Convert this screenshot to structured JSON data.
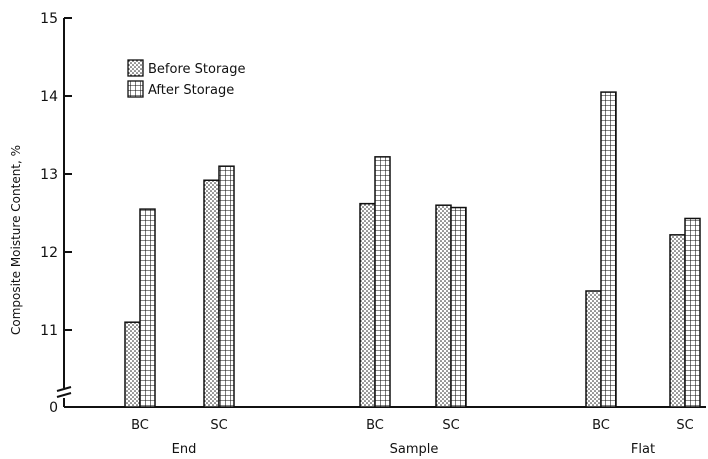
{
  "chart_data": {
    "type": "bar",
    "ylabel": "Composite Moisture Content, %",
    "yticks": [
      0,
      11,
      12,
      13,
      14,
      15
    ],
    "axis_break": true,
    "groups": [
      {
        "label": "End",
        "categories": [
          "BC",
          "SC"
        ]
      },
      {
        "label": "Sample",
        "categories": [
          "BC",
          "SC"
        ]
      },
      {
        "label": "Flat",
        "categories": [
          "BC",
          "SC"
        ]
      }
    ],
    "series": [
      {
        "name": "Before Storage",
        "pattern": "dots",
        "values": [
          11.1,
          12.92,
          12.62,
          12.6,
          11.5,
          12.22
        ]
      },
      {
        "name": "After Storage",
        "pattern": "grid",
        "values": [
          12.55,
          13.1,
          13.22,
          12.57,
          14.05,
          12.43
        ]
      }
    ],
    "legend_position": "top-left"
  }
}
